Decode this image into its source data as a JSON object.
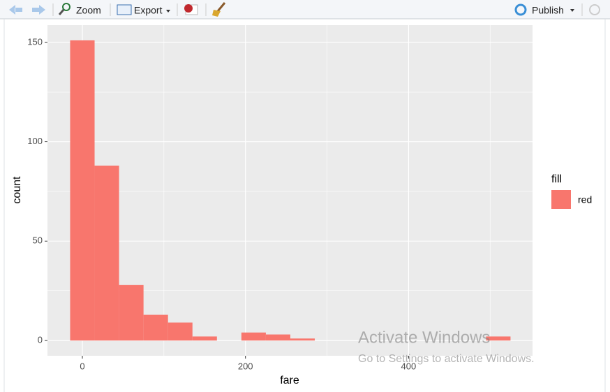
{
  "toolbar": {
    "zoom": "Zoom",
    "export": "Export",
    "publish": "Publish"
  },
  "chart_data": {
    "type": "histogram",
    "x_label": "fare",
    "y_label": "count",
    "bins": [
      -15,
      15,
      45,
      75,
      105,
      135,
      165,
      195,
      225,
      255,
      285,
      315,
      345,
      375,
      405,
      435,
      465,
      495,
      525
    ],
    "series": [
      {
        "name": "red",
        "color": "#F8766D",
        "values": [
          151,
          88,
          28,
          13,
          9,
          2,
          0,
          4,
          3,
          1,
          0,
          0,
          0,
          0,
          0,
          0,
          0,
          2
        ]
      }
    ],
    "legend_title": "fill",
    "xlim": [
      -42.8,
      552
    ],
    "ylim": [
      -7.7,
      158.7
    ],
    "xticks": [
      0,
      200,
      400
    ],
    "yticks": [
      0,
      50,
      100,
      150
    ],
    "x_minor_breaks": [
      100,
      300,
      500
    ],
    "y_minor_breaks": [
      25,
      75,
      125
    ],
    "grid": true,
    "panel_color": "#EBEBEB"
  },
  "watermark": {
    "title": "Activate Windows",
    "subtitle": "Go to Settings to activate Windows."
  }
}
